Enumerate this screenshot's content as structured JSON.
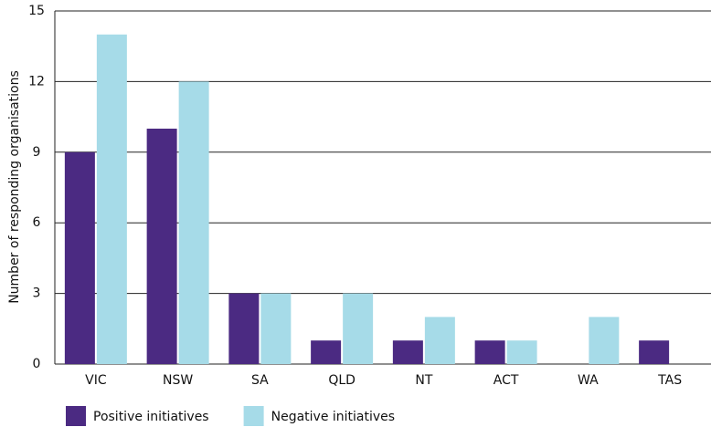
{
  "chart_data": {
    "type": "bar",
    "y_label": "Number of responding organisations",
    "categories": [
      "VIC",
      "NSW",
      "SA",
      "QLD",
      "NT",
      "ACT",
      "WA",
      "TAS"
    ],
    "series": [
      {
        "name": "Positive initiatives",
        "color": "#4b2a82",
        "values": [
          9,
          10,
          3,
          1,
          1,
          1,
          0,
          1
        ]
      },
      {
        "name": "Negative initiatives",
        "color": "#a6dbe8",
        "values": [
          14,
          12,
          3,
          3,
          2,
          1,
          2,
          0
        ]
      }
    ],
    "ylim": [
      0,
      15
    ],
    "yticks": [
      0,
      3,
      6,
      9,
      12,
      15
    ],
    "grid": true,
    "legend": "bottom"
  }
}
